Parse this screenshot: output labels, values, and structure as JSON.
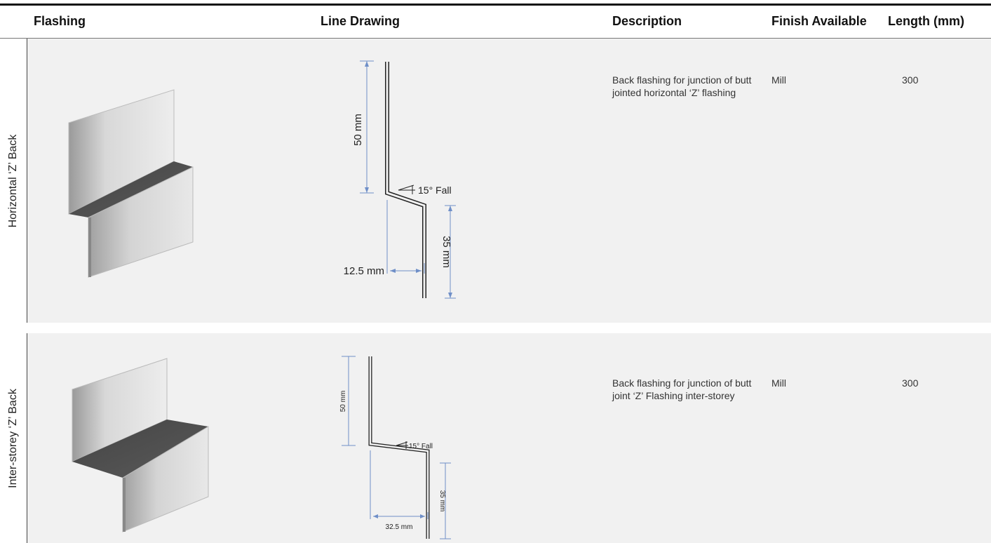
{
  "table": {
    "headers": {
      "flashing": "Flashing",
      "line_drawing": "Line Drawing",
      "description": "Description",
      "finish": "Finish Available",
      "length": "Length (mm)"
    },
    "rows": [
      {
        "label": "Horizontal ‘Z’ Back",
        "description": "Back flashing for junction of butt jointed horizontal ‘Z’ flashing",
        "finish": "Mill",
        "length": "300",
        "dims": {
          "upper": "50 mm",
          "fall": "15° Fall",
          "offset": "12.5 mm",
          "lower": "35 mm"
        }
      },
      {
        "label": "Inter-storey ‘Z’ Back",
        "description": "Back flashing for junction of butt joint ‘Z’ Flashing inter-storey",
        "finish": "Mill",
        "length": "300",
        "dims": {
          "upper": "50 mm",
          "fall": "15° Fall",
          "offset": "32.5 mm",
          "lower": "35 mm"
        }
      }
    ]
  },
  "colors": {
    "dimension_line": "#6f8fc8",
    "row_background": "#f1f1f1",
    "rule": "#111111"
  }
}
